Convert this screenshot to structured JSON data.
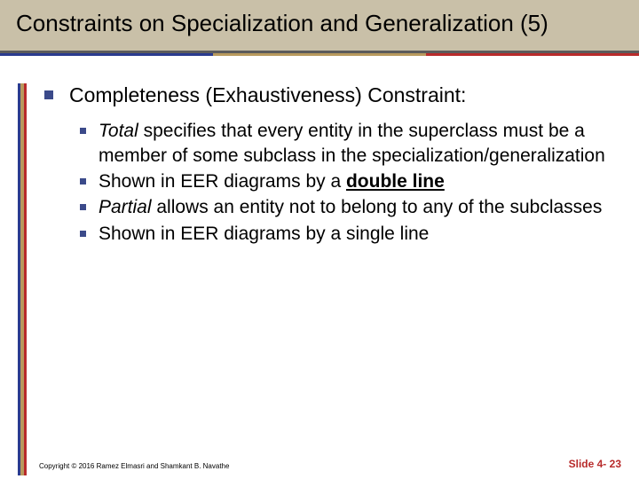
{
  "colors": {
    "title_band_bg": "#c9c0a8",
    "title_underline": "#5b5b5b",
    "stripe_blue": "#2a3b8f",
    "stripe_tan": "#b89a5e",
    "stripe_red": "#b82b2b",
    "bullet_large": "#3b4a8a",
    "bullet_small": "#3b4a8a",
    "slidenum_color": "#b82b2b"
  },
  "title": "Constraints on Specialization and Generalization (5)",
  "level1_text": "Completeness (Exhaustiveness) Constraint:",
  "sub_items": [
    {
      "italic_lead": "Total",
      "rest": " specifies that every entity in the superclass must be a member of some subclass in the specialization/generalization"
    },
    {
      "plain_lead": "Shown in EER diagrams by a ",
      "bold_under": "double line",
      "tail": ""
    },
    {
      "italic_lead": "Partial",
      "rest": " allows an entity not to belong to any of the subclasses"
    },
    {
      "plain_full": "Shown in EER diagrams by a single line"
    }
  ],
  "footer": {
    "copyright": "Copyright © 2016 Ramez Elmasri and Shamkant B. Navathe",
    "slide": "Slide 4- 23"
  }
}
